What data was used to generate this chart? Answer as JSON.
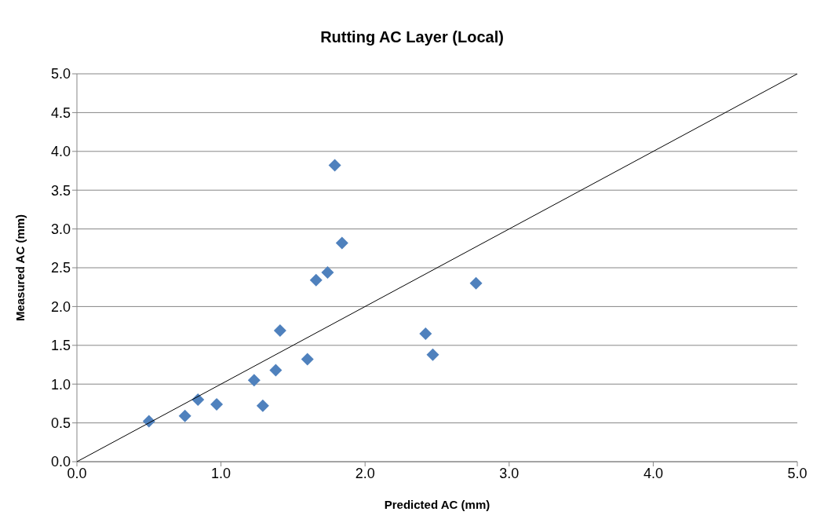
{
  "chart_data": {
    "type": "scatter",
    "title": "Rutting AC Layer (Local)",
    "xlabel": "Predicted AC (mm)",
    "ylabel": "Measured AC (mm)",
    "xlim": [
      0,
      5
    ],
    "xticks": [
      {
        "value": 0,
        "label": "0.0"
      },
      {
        "value": 1,
        "label": "1.0"
      },
      {
        "value": 2,
        "label": "2.0"
      },
      {
        "value": 3,
        "label": "3.0"
      },
      {
        "value": 4,
        "label": "4.0"
      },
      {
        "value": 5,
        "label": "5.0"
      }
    ],
    "ylim": [
      0,
      5
    ],
    "yticks": [
      {
        "value": 0,
        "label": "0.0"
      },
      {
        "value": 0.5,
        "label": "0.5"
      },
      {
        "value": 1,
        "label": "1.0"
      },
      {
        "value": 1.5,
        "label": "1.5"
      },
      {
        "value": 2,
        "label": "2.0"
      },
      {
        "value": 2.5,
        "label": "2.5"
      },
      {
        "value": 3,
        "label": "3.0"
      },
      {
        "value": 3.5,
        "label": "3.5"
      },
      {
        "value": 4,
        "label": "4.0"
      },
      {
        "value": 4.5,
        "label": "4.5"
      },
      {
        "value": 5,
        "label": "5.0"
      }
    ],
    "grid": "y",
    "legend": false,
    "series": [
      {
        "type": "scatter",
        "marker": "diamond",
        "color": "#4f81bd",
        "x": [
          0.5,
          0.75,
          0.84,
          0.97,
          1.23,
          1.29,
          1.38,
          1.41,
          1.6,
          1.66,
          1.74,
          1.79,
          1.84,
          2.42,
          2.47,
          2.77
        ],
        "values": [
          0.52,
          0.59,
          0.8,
          0.74,
          1.05,
          0.72,
          1.18,
          1.69,
          1.32,
          2.34,
          2.44,
          3.82,
          2.82,
          1.65,
          1.38,
          2.3
        ]
      },
      {
        "type": "line",
        "marker": "none",
        "color": "#000000",
        "x": [
          0,
          5
        ],
        "values": [
          0,
          5
        ]
      }
    ]
  }
}
